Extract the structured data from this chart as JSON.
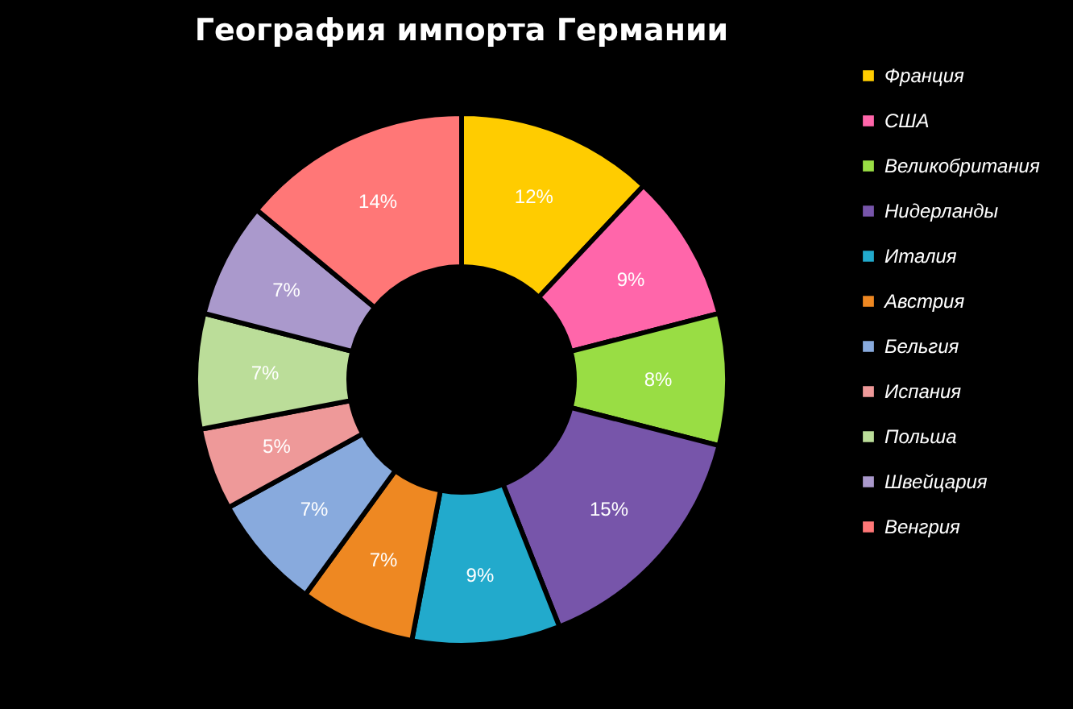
{
  "chart_data": {
    "type": "donut",
    "title": "География импорта Германии",
    "categories": [
      "Франция",
      "США",
      "Великобритания",
      "Нидерланды",
      "Италия",
      "Австрия",
      "Бельгия",
      "Испания",
      "Польша",
      "Швейцария",
      "Венгрия"
    ],
    "values": [
      12,
      9,
      8,
      15,
      9,
      7,
      7,
      5,
      7,
      7,
      14
    ],
    "value_labels": [
      "12%",
      "9%",
      "8%",
      "15%",
      "9%",
      "7%",
      "7%",
      "5%",
      "7%",
      "7%",
      "14%"
    ],
    "colors": [
      "#ffcc00",
      "#ff66aa",
      "#99dd44",
      "#7755aa",
      "#22aacc",
      "#ee8822",
      "#88aadd",
      "#ee9999",
      "#bbdd99",
      "#aa99cc",
      "#ff7777"
    ],
    "legend": "right"
  }
}
